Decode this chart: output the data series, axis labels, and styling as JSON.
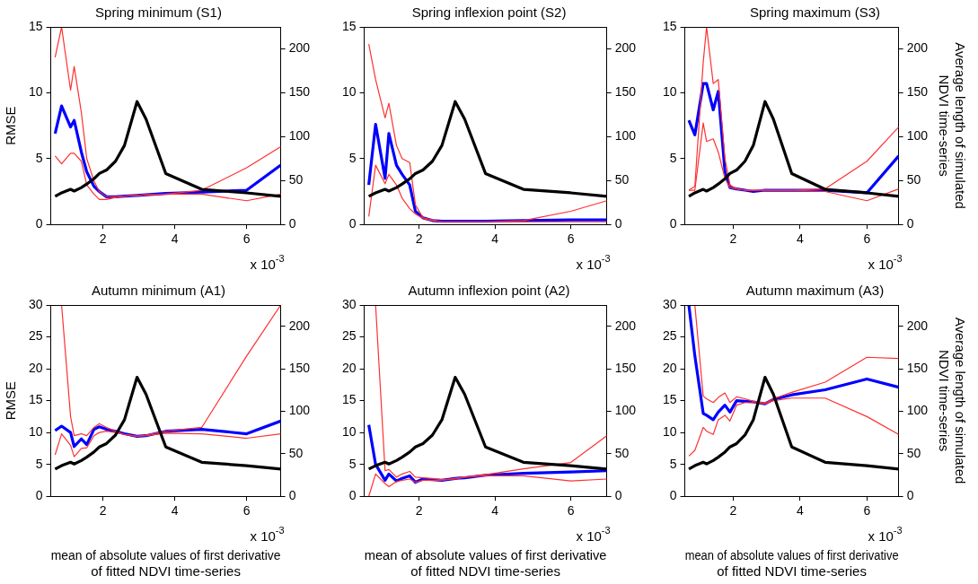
{
  "chart_data": [
    {
      "type": "line",
      "title": "Spring minimum (S1)",
      "ylabel": "RMSE",
      "x": [
        0.67,
        0.85,
        1.1,
        1.2,
        1.4,
        1.55,
        1.75,
        1.9,
        2.1,
        2.35,
        2.6,
        2.95,
        3.2,
        3.75,
        4.75,
        6,
        6.95
      ],
      "xlim": [
        0.55,
        6.95
      ],
      "xticks": [
        2,
        4,
        6
      ],
      "ylim": [
        0,
        15
      ],
      "yticks": [
        0,
        5,
        10,
        15
      ],
      "y2lim": [
        0,
        225
      ],
      "y2ticks": [
        0,
        50,
        100,
        150,
        200
      ],
      "grid": false,
      "legend": false,
      "marker": "none",
      "annotations": [
        "x 10$^{-3}$"
      ],
      "series": [
        {
          "color": "#0000ff",
          "values": [
            6.9,
            9.0,
            7.4,
            7.9,
            5.5,
            4.0,
            2.9,
            2.5,
            2.1,
            2.1,
            2.15,
            2.2,
            2.25,
            2.35,
            2.45,
            2.6,
            4.5
          ]
        },
        {
          "color": "#ff3030",
          "values": [
            12.7,
            15.0,
            10.2,
            12.0,
            8.5,
            5.0,
            3.3,
            2.5,
            2.1,
            2.1,
            2.15,
            2.2,
            2.25,
            2.3,
            2.6,
            4.3,
            5.9
          ]
        },
        {
          "color": "#ff3030",
          "values": [
            5.2,
            4.6,
            5.4,
            5.4,
            4.8,
            3.0,
            2.3,
            1.9,
            1.9,
            2.05,
            2.15,
            2.2,
            2.25,
            2.3,
            2.3,
            1.8,
            2.3
          ]
        },
        {
          "color": "#000000",
          "axis": "y2",
          "values": [
            32,
            36,
            40,
            38,
            42,
            46,
            52,
            58,
            62,
            72,
            90,
            140,
            120,
            58,
            40,
            36,
            32
          ]
        }
      ]
    },
    {
      "type": "line",
      "title": "Spring inflexion point (S2)",
      "x": [
        0.67,
        0.85,
        1.1,
        1.2,
        1.4,
        1.55,
        1.75,
        1.9,
        2.1,
        2.35,
        2.6,
        2.95,
        3.2,
        3.75,
        4.75,
        6,
        6.95
      ],
      "xlim": [
        0.55,
        6.95
      ],
      "xticks": [
        2,
        4,
        6
      ],
      "ylim": [
        0,
        15
      ],
      "yticks": [
        0,
        5,
        10,
        15
      ],
      "y2lim": [
        0,
        225
      ],
      "y2ticks": [
        0,
        50,
        100,
        150,
        200
      ],
      "grid": false,
      "legend": false,
      "marker": "none",
      "annotations": [
        "x 10$^{-3}$"
      ],
      "series": [
        {
          "color": "#0000ff",
          "values": [
            3.0,
            7.6,
            3.5,
            6.9,
            4.5,
            3.8,
            3.0,
            1.0,
            0.5,
            0.3,
            0.25,
            0.25,
            0.25,
            0.25,
            0.3,
            0.35,
            0.35
          ]
        },
        {
          "color": "#ff3030",
          "values": [
            13.7,
            11.0,
            8.1,
            9.2,
            6.0,
            5.0,
            4.7,
            1.5,
            0.5,
            0.35,
            0.2,
            0.2,
            0.2,
            0.2,
            0.3,
            1.0,
            1.8
          ]
        },
        {
          "color": "#ff3030",
          "values": [
            0.6,
            4.5,
            3.1,
            3.8,
            3.0,
            2.0,
            1.2,
            0.8,
            0.45,
            0.3,
            0.2,
            0.2,
            0.2,
            0.2,
            0.2,
            0.2,
            0.2
          ]
        },
        {
          "color": "#000000",
          "axis": "y2",
          "values": [
            32,
            36,
            40,
            38,
            42,
            46,
            52,
            58,
            62,
            72,
            90,
            140,
            120,
            58,
            40,
            36,
            32
          ]
        }
      ]
    },
    {
      "type": "line",
      "title": "Spring maximum (S3)",
      "y2label": "Average length of simulated NDVI time-series",
      "x": [
        0.67,
        0.85,
        1.1,
        1.2,
        1.4,
        1.55,
        1.75,
        1.9,
        2.1,
        2.35,
        2.6,
        2.95,
        3.2,
        3.75,
        4.75,
        6,
        6.95
      ],
      "xlim": [
        0.55,
        6.95
      ],
      "xticks": [
        2,
        4,
        6
      ],
      "ylim": [
        0,
        15
      ],
      "yticks": [
        0,
        5,
        10,
        15
      ],
      "y2lim": [
        0,
        225
      ],
      "y2ticks": [
        0,
        50,
        100,
        150,
        200
      ],
      "grid": false,
      "legend": false,
      "marker": "none",
      "annotations": [
        "x 10$^{-3}$"
      ],
      "series": [
        {
          "color": "#0000ff",
          "values": [
            7.9,
            6.8,
            10.7,
            10.7,
            8.7,
            10.1,
            4.0,
            2.8,
            2.7,
            2.6,
            2.5,
            2.6,
            2.6,
            2.6,
            2.6,
            2.4,
            5.2
          ]
        },
        {
          "color": "#ff3030",
          "values": [
            2.6,
            2.9,
            12.3,
            15.0,
            10.7,
            11.0,
            5.0,
            3.0,
            2.7,
            2.6,
            2.6,
            2.6,
            2.6,
            2.6,
            2.7,
            4.8,
            7.4
          ]
        },
        {
          "color": "#ff3030",
          "values": [
            2.6,
            2.6,
            7.7,
            6.3,
            6.5,
            5.5,
            3.5,
            2.8,
            2.7,
            2.6,
            2.6,
            2.6,
            2.6,
            2.6,
            2.5,
            1.8,
            2.7
          ]
        },
        {
          "color": "#000000",
          "axis": "y2",
          "values": [
            32,
            36,
            40,
            38,
            42,
            46,
            52,
            58,
            62,
            72,
            90,
            140,
            120,
            58,
            40,
            36,
            32
          ]
        }
      ]
    },
    {
      "type": "line",
      "title": "Autumn minimum (A1)",
      "ylabel": "RMSE",
      "xlabel": "mean of absolute values of first derivative of fitted NDVI time-series",
      "x": [
        0.67,
        0.85,
        1.1,
        1.2,
        1.4,
        1.55,
        1.75,
        1.9,
        2.1,
        2.35,
        2.6,
        2.95,
        3.2,
        3.75,
        4.75,
        6,
        6.95
      ],
      "xlim": [
        0.55,
        6.95
      ],
      "xticks": [
        2,
        4,
        6
      ],
      "ylim": [
        0,
        30
      ],
      "yticks": [
        0,
        5,
        10,
        15,
        20,
        25,
        30
      ],
      "y2lim": [
        0,
        225
      ],
      "y2ticks": [
        0,
        50,
        100,
        150,
        200
      ],
      "grid": false,
      "legend": false,
      "marker": "none",
      "annotations": [
        "x 10$^{-3}$"
      ],
      "series": [
        {
          "color": "#0000ff",
          "values": [
            10.3,
            11.0,
            10.0,
            7.8,
            9.0,
            8.1,
            10.5,
            10.9,
            10.5,
            10.2,
            9.8,
            9.4,
            9.5,
            10.2,
            10.5,
            9.8,
            11.8
          ]
        },
        {
          "color": "#ff3030",
          "values": [
            null,
            30,
            12.5,
            9.5,
            9.8,
            9.5,
            10.8,
            11.4,
            10.8,
            10.2,
            9.7,
            9.4,
            9.6,
            10.2,
            10.8,
            22,
            30
          ]
        },
        {
          "color": "#ff3030",
          "values": [
            6.5,
            9.8,
            8.0,
            6.2,
            7.5,
            7.6,
            9.5,
            10.0,
            10.2,
            10.0,
            9.7,
            9.4,
            9.5,
            9.9,
            9.8,
            9.1,
            9.8
          ]
        },
        {
          "color": "#000000",
          "axis": "y2",
          "values": [
            32,
            36,
            40,
            38,
            42,
            46,
            52,
            58,
            62,
            72,
            90,
            140,
            120,
            58,
            40,
            36,
            32
          ]
        }
      ]
    },
    {
      "type": "line",
      "title": "Autumn inflexion point (A2)",
      "xlabel": "mean of absolute values of first derivative of fitted NDVI time-series",
      "x": [
        0.67,
        0.85,
        1.1,
        1.2,
        1.4,
        1.55,
        1.75,
        1.9,
        2.1,
        2.35,
        2.6,
        2.95,
        3.2,
        3.75,
        4.75,
        6,
        6.95
      ],
      "xlim": [
        0.55,
        6.95
      ],
      "xticks": [
        2,
        4,
        6
      ],
      "ylim": [
        0,
        30
      ],
      "yticks": [
        0,
        5,
        10,
        15,
        20,
        25,
        30
      ],
      "y2lim": [
        0,
        225
      ],
      "y2ticks": [
        0,
        50,
        100,
        150,
        200
      ],
      "grid": false,
      "legend": false,
      "marker": "none",
      "annotations": [
        "x 10$^{-3}$"
      ],
      "series": [
        {
          "color": "#0000ff",
          "values": [
            11.2,
            5.0,
            2.5,
            3.5,
            2.4,
            2.8,
            3.2,
            2.2,
            2.7,
            2.6,
            2.5,
            2.8,
            2.9,
            3.3,
            3.6,
            3.8,
            4.0
          ]
        },
        {
          "color": "#ff3030",
          "values": [
            null,
            30,
            4.0,
            4.2,
            3.0,
            3.5,
            3.9,
            3.0,
            2.9,
            2.8,
            2.6,
            2.7,
            3.0,
            3.4,
            4.3,
            5.3,
            9.5
          ]
        },
        {
          "color": "#ff3030",
          "values": [
            0,
            3.5,
            2.0,
            1.5,
            2.3,
            2.5,
            2.7,
            2.2,
            2.5,
            2.5,
            2.5,
            2.8,
            3.0,
            3.2,
            3.2,
            2.4,
            2.7
          ]
        },
        {
          "color": "#000000",
          "axis": "y2",
          "values": [
            32,
            36,
            40,
            38,
            42,
            46,
            52,
            58,
            62,
            72,
            90,
            140,
            120,
            58,
            40,
            36,
            32
          ]
        }
      ]
    },
    {
      "type": "line",
      "title": "Autumn maximum (A3)",
      "xlabel": "mean of absolute values of first derivative of fitted NDVI time-series",
      "y2label": "Average length of simulated NDVI time-series",
      "x": [
        0.67,
        0.85,
        1.1,
        1.2,
        1.4,
        1.55,
        1.75,
        1.9,
        2.1,
        2.35,
        2.6,
        2.95,
        3.2,
        3.75,
        4.75,
        6,
        6.95
      ],
      "xlim": [
        0.55,
        6.95
      ],
      "xticks": [
        2,
        4,
        6
      ],
      "ylim": [
        0,
        30
      ],
      "yticks": [
        0,
        5,
        10,
        15,
        20,
        25,
        30
      ],
      "y2lim": [
        0,
        225
      ],
      "y2ticks": [
        0,
        50,
        100,
        150,
        200
      ],
      "grid": false,
      "legend": false,
      "marker": "none",
      "annotations": [
        "x 10$^{-3}$"
      ],
      "series": [
        {
          "color": "#0000ff",
          "values": [
            30,
            22,
            13.0,
            12.7,
            12.0,
            13.2,
            14.3,
            13.2,
            15.0,
            14.9,
            14.8,
            14.5,
            15.2,
            15.9,
            16.7,
            18.4,
            17.1
          ]
        },
        {
          "color": "#ff3030",
          "values": [
            null,
            30,
            15.7,
            15.3,
            14.7,
            15.5,
            16.2,
            14.7,
            15.6,
            15.3,
            14.9,
            14.6,
            15.3,
            16.3,
            17.9,
            21.8,
            21.6
          ]
        },
        {
          "color": "#ff3030",
          "values": [
            6.3,
            7.2,
            10.8,
            10.2,
            9.7,
            12.0,
            12.7,
            11.8,
            14.3,
            14.7,
            14.7,
            14.5,
            15.0,
            15.4,
            15.4,
            12.5,
            9.7
          ]
        },
        {
          "color": "#000000",
          "axis": "y2",
          "values": [
            32,
            36,
            40,
            38,
            42,
            46,
            52,
            58,
            62,
            72,
            90,
            140,
            120,
            58,
            40,
            36,
            32
          ]
        }
      ]
    }
  ]
}
